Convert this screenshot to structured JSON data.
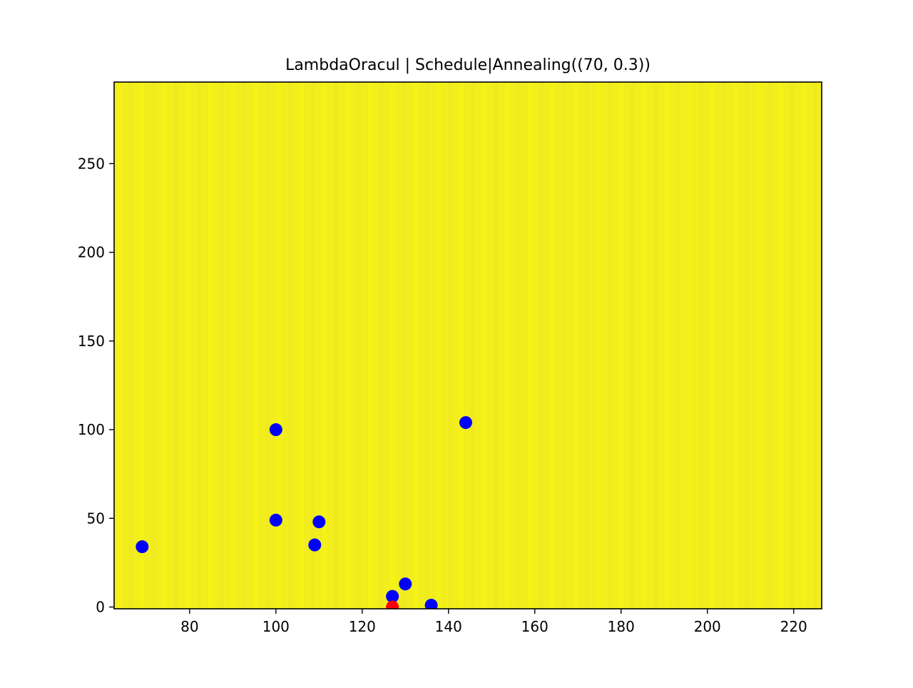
{
  "chart_data": {
    "type": "scatter",
    "title": "LambdaOracul | Schedule|Annealing((70, 0.3))",
    "xlabel": "",
    "ylabel": "",
    "xlim": [
      62.5,
      226.5
    ],
    "ylim": [
      -1,
      296
    ],
    "x_ticks": [
      80,
      100,
      120,
      140,
      160,
      180,
      200,
      220
    ],
    "y_ticks": [
      0,
      50,
      100,
      150,
      200,
      250
    ],
    "grid": false,
    "background_field": {
      "description_color": "#f2ee1e",
      "colormap_end": "#f8f80f"
    },
    "series": [
      {
        "color": "#0000ff",
        "points": [
          {
            "x": 69,
            "y": 34
          },
          {
            "x": 100,
            "y": 100
          },
          {
            "x": 100,
            "y": 49
          },
          {
            "x": 109,
            "y": 35
          },
          {
            "x": 110,
            "y": 48
          },
          {
            "x": 127,
            "y": 6
          },
          {
            "x": 130,
            "y": 13
          },
          {
            "x": 136,
            "y": 1
          },
          {
            "x": 144,
            "y": 104
          }
        ]
      },
      {
        "color": "#ff0000",
        "points": [
          {
            "x": 127,
            "y": 0
          }
        ]
      }
    ]
  }
}
